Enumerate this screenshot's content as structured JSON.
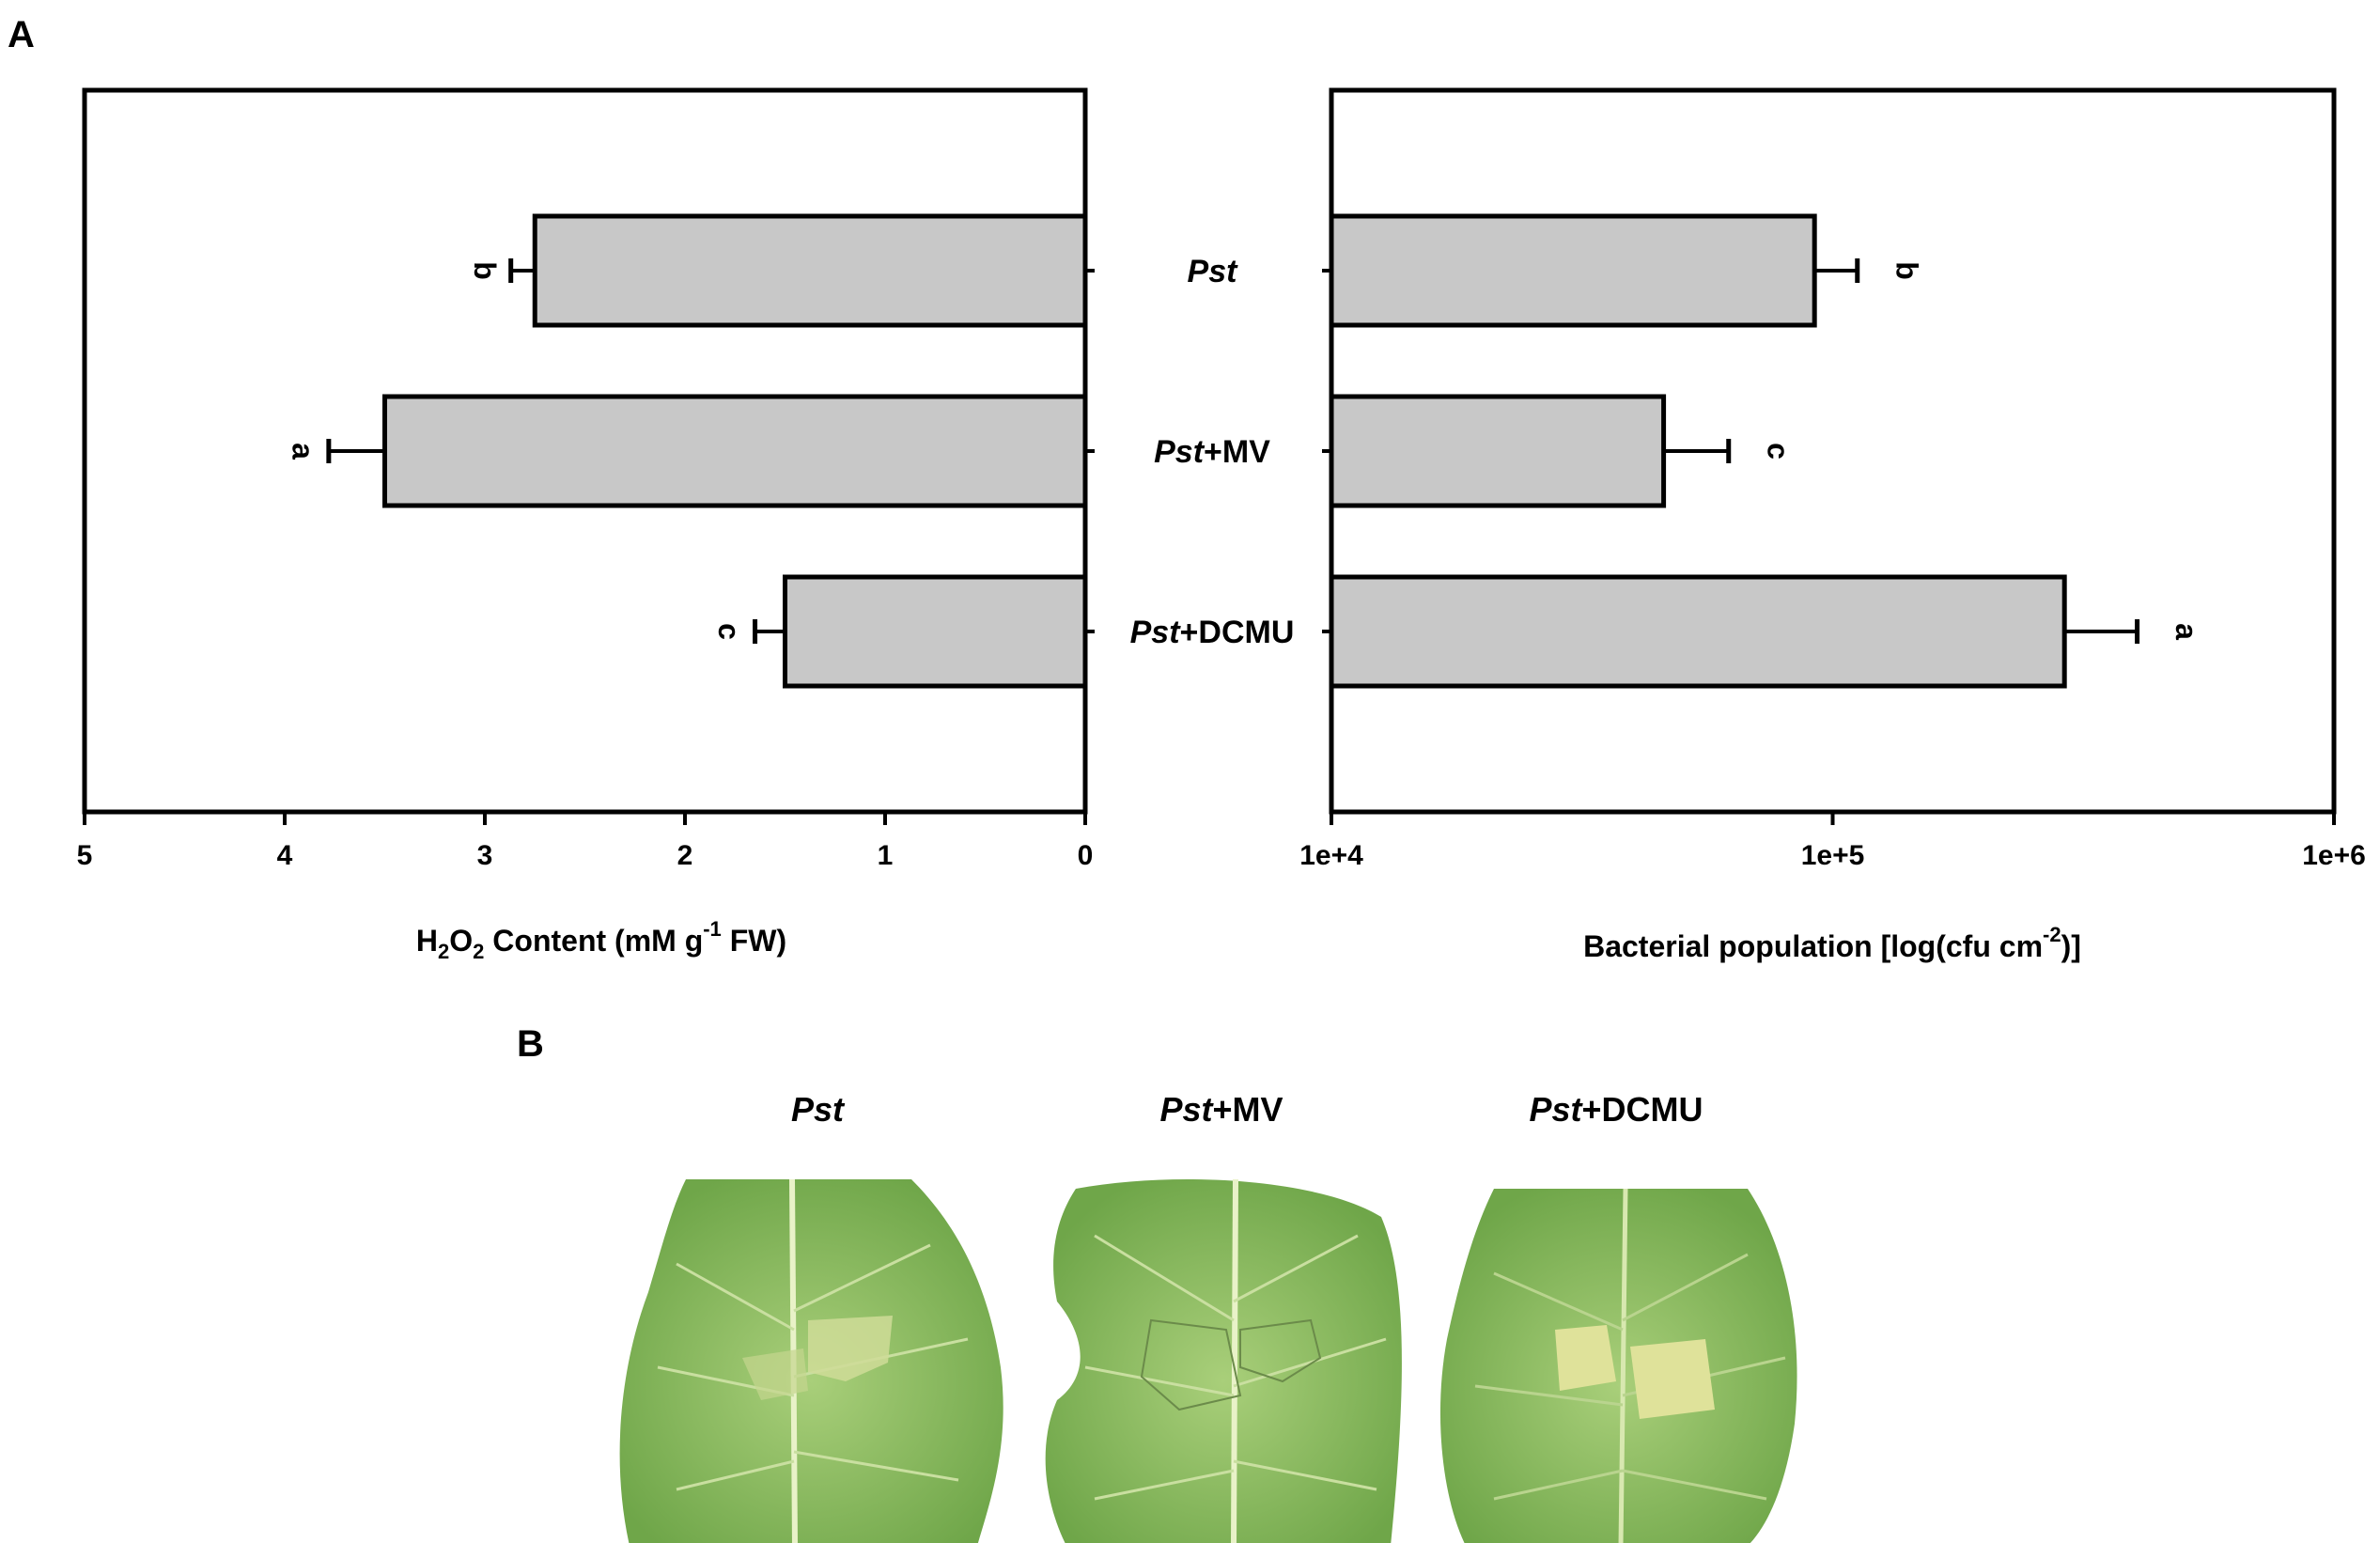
{
  "panel_a_label": "A",
  "panel_b_label": "B",
  "chart_data": [
    {
      "type": "bar",
      "orientation": "horizontal",
      "x_direction": "reversed",
      "categories": [
        {
          "italic": "Pst",
          "rest": ""
        },
        {
          "italic": "Pst",
          "rest": "+MV"
        },
        {
          "italic": "Pst",
          "rest": "+DCMU"
        }
      ],
      "values": [
        2.75,
        3.5,
        1.5
      ],
      "errors": [
        0.12,
        0.28,
        0.15
      ],
      "significance_letters": [
        "b",
        "a",
        "c"
      ],
      "xlabel": {
        "prefix": "H",
        "sub1": "2",
        "mid": "O",
        "sub2": "2",
        "text": " Content (mM g",
        "sup": "-1",
        "suffix": " FW)"
      },
      "xlim": [
        0,
        5
      ],
      "ticks": [
        5,
        4,
        3,
        2,
        1,
        0
      ],
      "tick_labels": [
        "5",
        "4",
        "3",
        "2",
        "1",
        "0"
      ],
      "bar_color": "#c8c8c8",
      "grid": false
    },
    {
      "type": "bar",
      "orientation": "horizontal",
      "x_scale": "log",
      "categories": [
        "Pst",
        "Pst+MV",
        "Pst+DCMU"
      ],
      "values": [
        92000,
        46000,
        290000
      ],
      "errors": [
        20000,
        16000,
        115000
      ],
      "significance_letters": [
        "b",
        "c",
        "a"
      ],
      "xlabel": {
        "text": "Bacterial population [log(cfu cm",
        "sup": "-2",
        "suffix": ")]"
      },
      "xlim": [
        10000,
        1000000
      ],
      "ticks": [
        10000,
        100000,
        1000000
      ],
      "tick_labels": [
        "1e+4",
        "1e+5",
        "1e+6"
      ],
      "bar_color": "#c8c8c8",
      "grid": false
    }
  ],
  "panel_b": {
    "labels": [
      {
        "italic": "Pst",
        "rest": ""
      },
      {
        "italic": "Pst",
        "rest": "+MV"
      },
      {
        "italic": "Pst",
        "rest": "+DCMU"
      }
    ],
    "leaf_color": "#8fbf5e",
    "lesion_color": "#dfe29a"
  }
}
